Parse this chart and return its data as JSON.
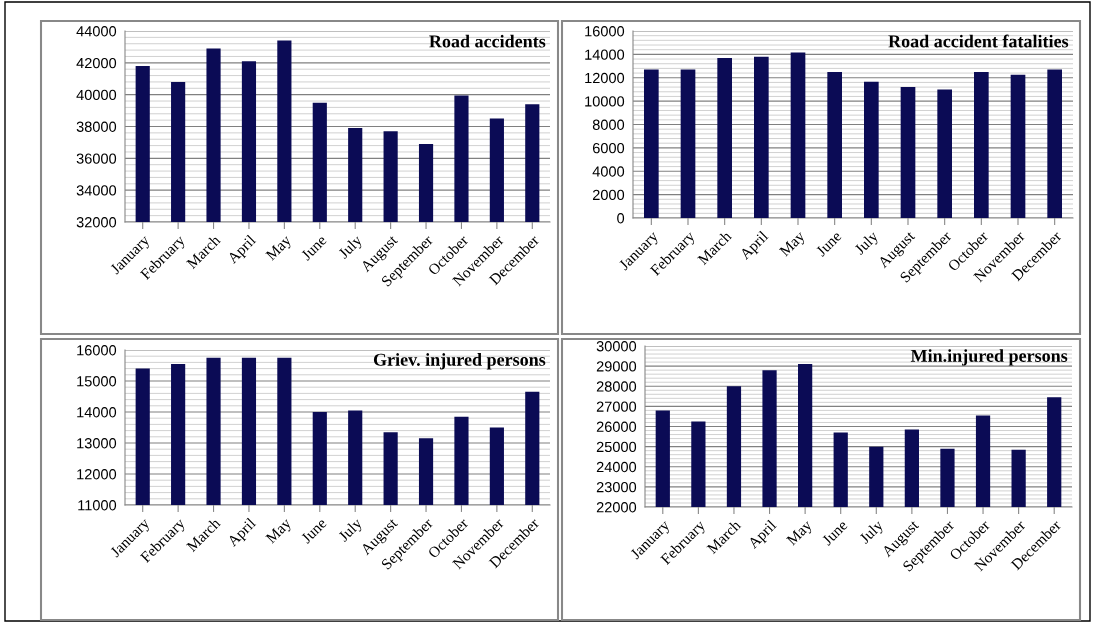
{
  "chart_data": [
    {
      "type": "bar",
      "title": "Road accidents",
      "categories": [
        "January",
        "February",
        "March",
        "April",
        "May",
        "June",
        "July",
        "August",
        "September",
        "October",
        "November",
        "December"
      ],
      "values": [
        41800,
        40800,
        42900,
        42100,
        43400,
        39500,
        37900,
        37700,
        36900,
        39950,
        38500,
        39400
      ],
      "color": "#0b0b55",
      "ylim": [
        32000,
        44000
      ],
      "yticks": [
        32000,
        34000,
        36000,
        38000,
        40000,
        42000,
        44000
      ],
      "grid": "y"
    },
    {
      "type": "bar",
      "title": "Road accident fatalities",
      "categories": [
        "January",
        "February",
        "March",
        "April",
        "May",
        "June",
        "July",
        "August",
        "September",
        "October",
        "November",
        "December"
      ],
      "values": [
        12700,
        12700,
        13700,
        13800,
        14150,
        12500,
        11650,
        11200,
        11000,
        12500,
        12250,
        12700
      ],
      "color": "#0b0b55",
      "ylim": [
        0,
        16000
      ],
      "yticks": [
        0,
        2000,
        4000,
        6000,
        8000,
        10000,
        12000,
        14000,
        16000
      ],
      "grid": "y"
    },
    {
      "type": "bar",
      "title": "Griev. injured persons",
      "categories": [
        "January",
        "February",
        "March",
        "April",
        "May",
        "June",
        "July",
        "August",
        "September",
        "October",
        "November",
        "December"
      ],
      "values": [
        15400,
        15550,
        15750,
        15750,
        15750,
        14000,
        14050,
        13350,
        13150,
        13850,
        13500,
        14650
      ],
      "color": "#0b0b55",
      "ylim": [
        11000,
        16000
      ],
      "yticks": [
        11000,
        12000,
        13000,
        14000,
        15000,
        16000
      ],
      "grid": "y"
    },
    {
      "type": "bar",
      "title": "Min.injured persons",
      "categories": [
        "January",
        "February",
        "March",
        "April",
        "May",
        "June",
        "July",
        "August",
        "September",
        "October",
        "November",
        "December"
      ],
      "values": [
        26800,
        26250,
        28000,
        28800,
        29100,
        25700,
        25000,
        25850,
        24900,
        26550,
        24850,
        27450
      ],
      "color": "#0b0b55",
      "ylim": [
        22000,
        30000
      ],
      "yticks": [
        22000,
        23000,
        24000,
        25000,
        26000,
        27000,
        28000,
        29000,
        30000
      ],
      "grid": "y"
    }
  ]
}
